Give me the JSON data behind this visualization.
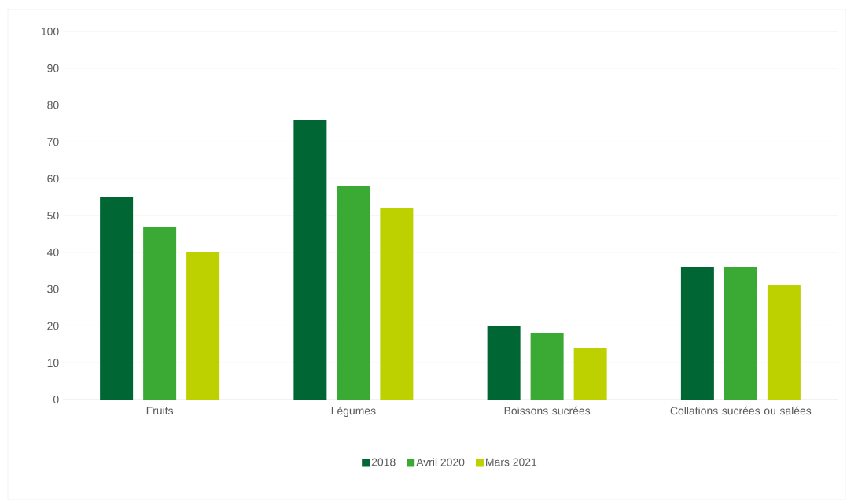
{
  "chart_data": {
    "type": "bar",
    "categories": [
      "Fruits",
      "Légumes",
      "Boissons sucrées",
      "Collations sucrées ou salées"
    ],
    "series": [
      {
        "name": "2018",
        "color": "#006633",
        "values": [
          55,
          76,
          20,
          36
        ]
      },
      {
        "name": "Avril 2020",
        "color": "#3aaa35",
        "values": [
          47,
          58,
          18,
          36
        ]
      },
      {
        "name": "Mars 2021",
        "color": "#bdd000",
        "values": [
          40,
          52,
          14,
          31
        ]
      }
    ],
    "ylim": [
      0,
      100
    ],
    "yticks": [
      0,
      10,
      20,
      30,
      40,
      50,
      60,
      70,
      80,
      90,
      100
    ],
    "grid": "y",
    "legend": "bottom"
  }
}
